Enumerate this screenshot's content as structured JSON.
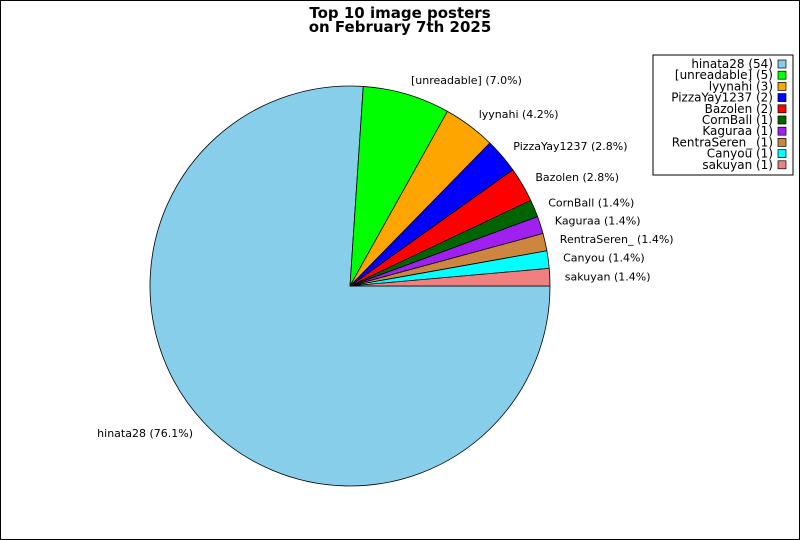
{
  "chart_data": {
    "type": "pie",
    "title_lines": [
      "Top 10 image posters",
      "on February 7th 2025"
    ],
    "slices": [
      {
        "name": "hinata28",
        "count": 54,
        "percent": 76.1,
        "color": "#87ceeb",
        "label": "hinata28 (76.1%)",
        "legend": "hinata28 (54)"
      },
      {
        "name": "[unreadable]",
        "count": 5,
        "percent": 7.0,
        "color": "#00ff00",
        "label": "[unreadable] (7.0%)",
        "legend": "[unreadable] (5)"
      },
      {
        "name": "lyynahi",
        "count": 3,
        "percent": 4.2,
        "color": "#ffa500",
        "label": "lyynahi (4.2%)",
        "legend": "lyynahi (3)"
      },
      {
        "name": "PizzaYay1237",
        "count": 2,
        "percent": 2.8,
        "color": "#0000ff",
        "label": "PizzaYay1237 (2.8%)",
        "legend": "PizzaYay1237 (2)"
      },
      {
        "name": "Bazolen",
        "count": 2,
        "percent": 2.8,
        "color": "#ff0000",
        "label": "Bazolen (2.8%)",
        "legend": "Bazolen (2)"
      },
      {
        "name": "CornBall",
        "count": 1,
        "percent": 1.4,
        "color": "#006400",
        "label": "CornBall (1.4%)",
        "legend": "CornBall (1)"
      },
      {
        "name": "Kaguraa",
        "count": 1,
        "percent": 1.4,
        "color": "#a020f0",
        "label": "Kaguraa (1.4%)",
        "legend": "Kaguraa (1)"
      },
      {
        "name": "RentraSeren_",
        "count": 1,
        "percent": 1.4,
        "color": "#cd853f",
        "label": "RentraSeren_ (1.4%)",
        "legend": "RentraSeren_ (1)"
      },
      {
        "name": "Canyou",
        "count": 1,
        "percent": 1.4,
        "color": "#00ffff",
        "label": "Canyou (1.4%)",
        "legend": "Canyou (1)"
      },
      {
        "name": "sakuyan",
        "count": 1,
        "percent": 1.4,
        "color": "#f08080",
        "label": "sakuyan (1.4%)",
        "legend": "sakuyan (1)"
      }
    ],
    "legend_position": "top-right"
  }
}
